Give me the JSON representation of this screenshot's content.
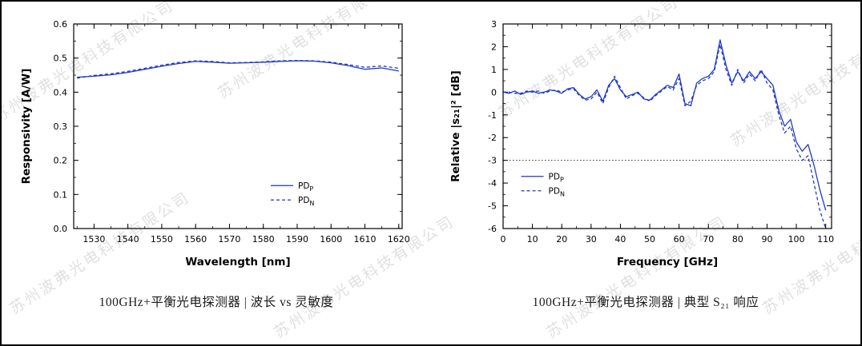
{
  "page": {
    "watermark_text": "苏州波弗光电科技有限公司",
    "accent_color": "#1f39c4"
  },
  "chart_data": [
    {
      "type": "line",
      "title": "",
      "xlabel": "Wavelength  [nm]",
      "ylabel": "Responsivity  [A/W]",
      "xlim": [
        1524,
        1621
      ],
      "ylim": [
        0,
        0.6
      ],
      "xticks": [
        1530,
        1540,
        1550,
        1560,
        1570,
        1580,
        1590,
        1600,
        1610,
        1620
      ],
      "xtick_labels": [
        "1530",
        "1540",
        "1550",
        "1560",
        "1570",
        "1580",
        "1590",
        "1600",
        "1610",
        "1620"
      ],
      "yticks": [
        0,
        0.1,
        0.2,
        0.3,
        0.4,
        0.5,
        0.6
      ],
      "ytick_labels": [
        "0.0",
        "0.1",
        "0.2",
        "0.3",
        "0.4",
        "0.5",
        "0.6"
      ],
      "xminor_step": 5,
      "yminor_step": 0.05,
      "grid": false,
      "color": "#1f39c4",
      "legend": {
        "fx": 0.6,
        "fy": 0.79,
        "items": [
          {
            "base": "PD",
            "sub": "P",
            "dash": ""
          },
          {
            "base": "PD",
            "sub": "N",
            "dash": "4,3"
          }
        ]
      },
      "series": [
        {
          "name": "PD_P",
          "dash": "",
          "x": [
            1525,
            1530,
            1535,
            1540,
            1545,
            1550,
            1555,
            1560,
            1565,
            1570,
            1575,
            1580,
            1585,
            1590,
            1595,
            1600,
            1605,
            1610,
            1615,
            1620
          ],
          "y": [
            0.444,
            0.447,
            0.451,
            0.458,
            0.467,
            0.476,
            0.484,
            0.49,
            0.488,
            0.485,
            0.486,
            0.488,
            0.49,
            0.492,
            0.491,
            0.486,
            0.478,
            0.467,
            0.471,
            0.462
          ]
        },
        {
          "name": "PD_N",
          "dash": "4,3",
          "x": [
            1525,
            1530,
            1535,
            1540,
            1545,
            1550,
            1555,
            1560,
            1565,
            1570,
            1575,
            1580,
            1585,
            1590,
            1595,
            1600,
            1605,
            1610,
            1615,
            1620
          ],
          "y": [
            0.441,
            0.449,
            0.454,
            0.461,
            0.47,
            0.479,
            0.487,
            0.492,
            0.49,
            0.486,
            0.487,
            0.489,
            0.492,
            0.493,
            0.492,
            0.488,
            0.481,
            0.473,
            0.477,
            0.47
          ]
        }
      ],
      "caption": "100GHz+平衡光电探测器 | 波长 vs 灵敏度"
    },
    {
      "type": "line",
      "title": "",
      "xlabel": "Frequency  [GHz]",
      "ylabel": "Relative |s₂₁|²  [dB]",
      "xlim": [
        0,
        112
      ],
      "ylim": [
        -6,
        3
      ],
      "xticks": [
        0,
        10,
        20,
        30,
        40,
        50,
        60,
        70,
        80,
        90,
        100,
        110
      ],
      "xtick_labels": [
        "0",
        "10",
        "20",
        "30",
        "40",
        "50",
        "60",
        "70",
        "80",
        "90",
        "100",
        "110"
      ],
      "yticks": [
        -6,
        -5,
        -4,
        -3,
        -2,
        -1,
        0,
        1,
        2,
        3
      ],
      "ytick_labels": [
        "-6",
        "-5",
        "-4",
        "-3",
        "-2",
        "-1",
        "0",
        "1",
        "2",
        "3"
      ],
      "xminor_step": 5,
      "yminor_step": 0.5,
      "grid": false,
      "hline": -3,
      "color": "#1f39c4",
      "legend": {
        "fx": 0.055,
        "fy": 0.745,
        "items": [
          {
            "base": "PD",
            "sub": "P",
            "dash": ""
          },
          {
            "base": "PD",
            "sub": "N",
            "dash": "4,3"
          }
        ]
      },
      "series": [
        {
          "name": "PD_P",
          "dash": "",
          "x": [
            0,
            2,
            4,
            6,
            8,
            10,
            12,
            14,
            16,
            18,
            20,
            22,
            24,
            26,
            28,
            30,
            32,
            34,
            36,
            38,
            40,
            42,
            44,
            46,
            48,
            50,
            52,
            54,
            56,
            58,
            60,
            62,
            64,
            66,
            68,
            70,
            72,
            74,
            76,
            78,
            80,
            82,
            84,
            86,
            88,
            90,
            92,
            94,
            96,
            98,
            100,
            102,
            104,
            106,
            108,
            110
          ],
          "y": [
            0,
            -0.05,
            0.05,
            -0.1,
            0,
            0.05,
            -0.05,
            0,
            0.1,
            0.05,
            -0.05,
            0.15,
            0.2,
            -0.1,
            -0.3,
            -0.2,
            0.1,
            -0.4,
            0.3,
            0.6,
            0.1,
            -0.2,
            -0.1,
            0,
            -0.3,
            -0.35,
            -0.1,
            0.1,
            0.3,
            0.2,
            0.8,
            -0.5,
            -0.6,
            0.4,
            0.6,
            0.7,
            1.0,
            2.3,
            1.2,
            0.4,
            0.9,
            0.5,
            0.9,
            0.6,
            0.9,
            0.6,
            0.3,
            -0.8,
            -1.5,
            -1.2,
            -2.2,
            -2.6,
            -2.3,
            -3.2,
            -4.3,
            -5.2
          ]
        },
        {
          "name": "PD_N",
          "dash": "4,3",
          "x": [
            0,
            2,
            4,
            6,
            8,
            10,
            12,
            14,
            16,
            18,
            20,
            22,
            24,
            26,
            28,
            30,
            32,
            34,
            36,
            38,
            40,
            42,
            44,
            46,
            48,
            50,
            52,
            54,
            56,
            58,
            60,
            62,
            64,
            66,
            68,
            70,
            72,
            74,
            76,
            78,
            80,
            82,
            84,
            86,
            88,
            90,
            92,
            94,
            96,
            98,
            100,
            102,
            104,
            106,
            108,
            110
          ],
          "y": [
            0,
            0,
            -0.05,
            -0.05,
            0.05,
            0,
            0.05,
            -0.05,
            0.05,
            0.1,
            0,
            0.1,
            0.15,
            -0.15,
            -0.35,
            -0.3,
            0,
            -0.5,
            0.2,
            0.7,
            0.2,
            -0.3,
            -0.15,
            -0.05,
            -0.25,
            -0.4,
            -0.15,
            0.05,
            0.25,
            0.1,
            0.6,
            -0.6,
            -0.4,
            0.3,
            0.5,
            0.6,
            0.9,
            2.1,
            1.0,
            0.3,
            1.0,
            0.4,
            0.8,
            0.5,
            1.0,
            0.4,
            0.1,
            -1.0,
            -1.8,
            -1.5,
            -2.5,
            -3.0,
            -2.8,
            -4.0,
            -5.2,
            -6.0
          ]
        }
      ],
      "caption": "100GHz+平衡光电探测器 | 典型 S₂₁ 响应"
    }
  ]
}
